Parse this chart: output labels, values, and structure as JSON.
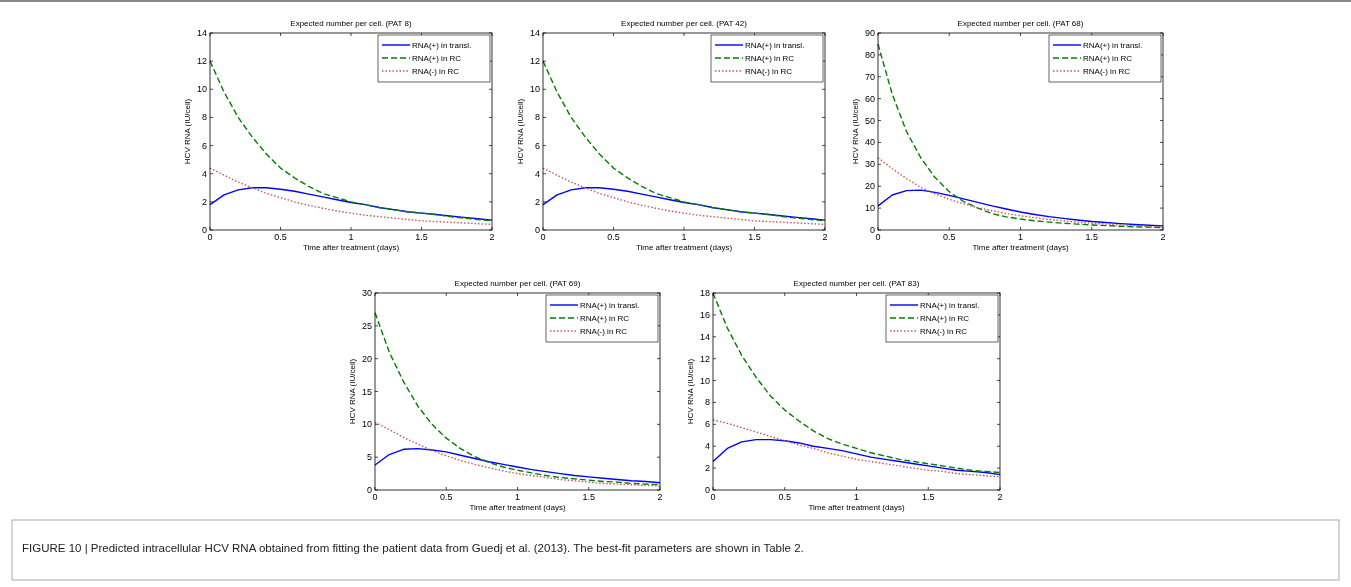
{
  "chart_data": [
    {
      "type": "line",
      "title": "Expected number per cell.   (PAT 8)",
      "xlabel": "Time after treatment (days)",
      "ylabel": "HCV RNA (IU/cell)",
      "xlim": [
        0,
        2
      ],
      "xticks": [
        0,
        0.5,
        1,
        1.5,
        2
      ],
      "ylim": [
        0,
        14
      ],
      "yticks": [
        0,
        2,
        4,
        6,
        8,
        10,
        12,
        14
      ],
      "legend": "top right",
      "grid": false,
      "x": [
        0,
        0.1,
        0.2,
        0.3,
        0.4,
        0.5,
        0.6,
        0.7,
        0.8,
        0.9,
        1,
        1.1,
        1.2,
        1.3,
        1.4,
        1.5,
        1.6,
        1.7,
        1.8,
        1.9,
        2
      ],
      "series": [
        {
          "name": "RNA(+) in transl.",
          "color": "#0000ff",
          "line_style": "solid",
          "values": [
            1.8,
            2.5,
            2.85,
            3.0,
            3.0,
            2.9,
            2.75,
            2.55,
            2.35,
            2.15,
            1.95,
            1.8,
            1.6,
            1.45,
            1.3,
            1.2,
            1.1,
            1.0,
            0.9,
            0.8,
            0.7
          ]
        },
        {
          "name": "RNA(+) in RC",
          "color": "#007f00",
          "line_style": "dashed",
          "values": [
            12,
            9.8,
            8.0,
            6.6,
            5.4,
            4.4,
            3.7,
            3.1,
            2.6,
            2.3,
            2.0,
            1.8,
            1.6,
            1.45,
            1.3,
            1.2,
            1.1,
            0.95,
            0.85,
            0.75,
            0.65
          ]
        },
        {
          "name": "RNA(-) in RC",
          "color": "#cc5555",
          "line_style": "dotted",
          "values": [
            4.4,
            3.9,
            3.4,
            3.0,
            2.6,
            2.3,
            2.0,
            1.75,
            1.55,
            1.35,
            1.2,
            1.05,
            0.95,
            0.85,
            0.75,
            0.65,
            0.6,
            0.55,
            0.5,
            0.45,
            0.4
          ]
        }
      ]
    },
    {
      "type": "line",
      "title": "Expected number per cell.   (PAT 42)",
      "xlabel": "Time after treatment (days)",
      "ylabel": "HCV RNA (IU/cell)",
      "xlim": [
        0,
        2
      ],
      "xticks": [
        0,
        0.5,
        1,
        1.5,
        2
      ],
      "ylim": [
        0,
        14
      ],
      "yticks": [
        0,
        2,
        4,
        6,
        8,
        10,
        12,
        14
      ],
      "legend": "top right",
      "grid": false,
      "x": [
        0,
        0.1,
        0.2,
        0.3,
        0.4,
        0.5,
        0.6,
        0.7,
        0.8,
        0.9,
        1,
        1.1,
        1.2,
        1.3,
        1.4,
        1.5,
        1.6,
        1.7,
        1.8,
        1.9,
        2
      ],
      "series": [
        {
          "name": "RNA(+) in transl.",
          "color": "#0000ff",
          "line_style": "solid",
          "values": [
            1.8,
            2.5,
            2.85,
            3.0,
            3.0,
            2.9,
            2.75,
            2.55,
            2.35,
            2.15,
            1.95,
            1.8,
            1.6,
            1.45,
            1.3,
            1.2,
            1.1,
            1.0,
            0.9,
            0.8,
            0.7
          ]
        },
        {
          "name": "RNA(+) in RC",
          "color": "#007f00",
          "line_style": "dashed",
          "values": [
            12,
            9.8,
            8.0,
            6.6,
            5.4,
            4.4,
            3.7,
            3.1,
            2.6,
            2.3,
            2.0,
            1.8,
            1.6,
            1.45,
            1.3,
            1.2,
            1.1,
            0.95,
            0.85,
            0.75,
            0.65
          ]
        },
        {
          "name": "RNA(-) in RC",
          "color": "#cc5555",
          "line_style": "dotted",
          "values": [
            4.4,
            3.9,
            3.4,
            3.0,
            2.6,
            2.3,
            2.0,
            1.75,
            1.55,
            1.35,
            1.2,
            1.05,
            0.95,
            0.85,
            0.75,
            0.65,
            0.6,
            0.55,
            0.5,
            0.45,
            0.4
          ]
        }
      ]
    },
    {
      "type": "line",
      "title": "Expected number per cell.   (PAT 68)",
      "xlabel": "Time after treatment (days)",
      "ylabel": "HCV RNA (IU/cell)",
      "xlim": [
        0,
        2
      ],
      "xticks": [
        0,
        0.5,
        1,
        1.5,
        2
      ],
      "ylim": [
        0,
        90
      ],
      "yticks": [
        0,
        10,
        20,
        30,
        40,
        50,
        60,
        70,
        80,
        90
      ],
      "legend": "top right",
      "grid": false,
      "x": [
        0,
        0.1,
        0.2,
        0.3,
        0.4,
        0.5,
        0.6,
        0.7,
        0.8,
        0.9,
        1,
        1.1,
        1.2,
        1.3,
        1.4,
        1.5,
        1.6,
        1.7,
        1.8,
        1.9,
        2
      ],
      "series": [
        {
          "name": "RNA(+) in transl.",
          "color": "#0000ff",
          "line_style": "solid",
          "values": [
            11,
            16,
            18,
            18.2,
            17.2,
            15.8,
            14.2,
            12.6,
            11,
            9.6,
            8.2,
            7.1,
            6.1,
            5.3,
            4.6,
            3.9,
            3.4,
            2.9,
            2.5,
            2.2,
            1.9
          ]
        },
        {
          "name": "RNA(+) in RC",
          "color": "#007f00",
          "line_style": "dashed",
          "values": [
            85,
            62,
            45,
            33,
            24,
            17.5,
            13,
            10,
            7.5,
            6,
            5,
            4.2,
            3.6,
            3.1,
            2.7,
            2.3,
            2,
            1.7,
            1.5,
            1.3,
            1.1
          ]
        },
        {
          "name": "RNA(-) in RC",
          "color": "#cc5555",
          "line_style": "dotted",
          "values": [
            33,
            28,
            23.5,
            19.5,
            16.5,
            14,
            12,
            10.2,
            8.8,
            7.5,
            6.5,
            5.6,
            4.8,
            4.2,
            3.6,
            3.1,
            2.7,
            2.3,
            2.0,
            1.7,
            1.5
          ]
        }
      ]
    },
    {
      "type": "line",
      "title": "Expected number per cell.   (PAT 69)",
      "xlabel": "Time after treatment (days)",
      "ylabel": "HCV RNA (IU/cell)",
      "xlim": [
        0,
        2
      ],
      "xticks": [
        0,
        0.5,
        1,
        1.5,
        2
      ],
      "ylim": [
        0,
        30
      ],
      "yticks": [
        0,
        5,
        10,
        15,
        20,
        25,
        30
      ],
      "legend": "top right",
      "grid": false,
      "x": [
        0,
        0.1,
        0.2,
        0.3,
        0.4,
        0.5,
        0.6,
        0.7,
        0.8,
        0.9,
        1,
        1.1,
        1.2,
        1.3,
        1.4,
        1.5,
        1.6,
        1.7,
        1.8,
        1.9,
        2
      ],
      "series": [
        {
          "name": "RNA(+) in transl.",
          "color": "#0000ff",
          "line_style": "solid",
          "values": [
            3.8,
            5.4,
            6.2,
            6.3,
            6.1,
            5.8,
            5.3,
            4.8,
            4.3,
            3.9,
            3.5,
            3.1,
            2.8,
            2.5,
            2.2,
            2.0,
            1.8,
            1.6,
            1.4,
            1.3,
            1.1
          ]
        },
        {
          "name": "RNA(+) in RC",
          "color": "#007f00",
          "line_style": "dashed",
          "values": [
            27,
            21,
            16.5,
            12.8,
            10,
            7.9,
            6.3,
            5.1,
            4.2,
            3.5,
            3.0,
            2.6,
            2.2,
            1.9,
            1.7,
            1.5,
            1.3,
            1.2,
            1.0,
            0.9,
            0.8
          ]
        },
        {
          "name": "RNA(-) in RC",
          "color": "#cc5555",
          "line_style": "dotted",
          "values": [
            10.3,
            9.2,
            8.0,
            7.0,
            6.0,
            5.2,
            4.5,
            3.9,
            3.4,
            2.9,
            2.5,
            2.2,
            1.9,
            1.6,
            1.4,
            1.2,
            1.0,
            0.9,
            0.8,
            0.7,
            0.6
          ]
        }
      ]
    },
    {
      "type": "line",
      "title": "Expected number per cell.   (PAT 83)",
      "xlabel": "Time after treatment (days)",
      "ylabel": "HCV RNA (IU/cell)",
      "xlim": [
        0,
        2
      ],
      "xticks": [
        0,
        0.5,
        1,
        1.5,
        2
      ],
      "ylim": [
        0,
        18
      ],
      "yticks": [
        0,
        2,
        4,
        6,
        8,
        10,
        12,
        14,
        16,
        18
      ],
      "legend": "top right",
      "grid": false,
      "x": [
        0,
        0.1,
        0.2,
        0.3,
        0.4,
        0.5,
        0.6,
        0.7,
        0.8,
        0.9,
        1,
        1.1,
        1.2,
        1.3,
        1.4,
        1.5,
        1.6,
        1.7,
        1.8,
        1.9,
        2
      ],
      "series": [
        {
          "name": "RNA(+) in transl.",
          "color": "#0000ff",
          "line_style": "solid",
          "values": [
            2.6,
            3.8,
            4.4,
            4.6,
            4.6,
            4.5,
            4.3,
            4.0,
            3.8,
            3.6,
            3.3,
            3.0,
            2.8,
            2.6,
            2.4,
            2.2,
            2.0,
            1.8,
            1.7,
            1.6,
            1.4
          ]
        },
        {
          "name": "RNA(+) in RC",
          "color": "#007f00",
          "line_style": "dashed",
          "values": [
            18,
            14.8,
            12.3,
            10.3,
            8.6,
            7.3,
            6.3,
            5.4,
            4.7,
            4.2,
            3.8,
            3.4,
            3.1,
            2.8,
            2.6,
            2.4,
            2.2,
            2.0,
            1.8,
            1.7,
            1.6
          ]
        },
        {
          "name": "RNA(-) in RC",
          "color": "#cc5555",
          "line_style": "dotted",
          "values": [
            6.4,
            6.1,
            5.7,
            5.3,
            4.9,
            4.5,
            4.1,
            3.8,
            3.4,
            3.1,
            2.8,
            2.6,
            2.4,
            2.2,
            2.0,
            1.8,
            1.7,
            1.5,
            1.4,
            1.3,
            1.2
          ]
        }
      ]
    },
    {
      "type": "other",
      "annotations": [
        "FIGURE 10 | Predicted intracellular HCV RNA obtained from fitting the patient data from Guedj et al. (2013). The best-fit parameters are shown in Table 2."
      ]
    }
  ]
}
